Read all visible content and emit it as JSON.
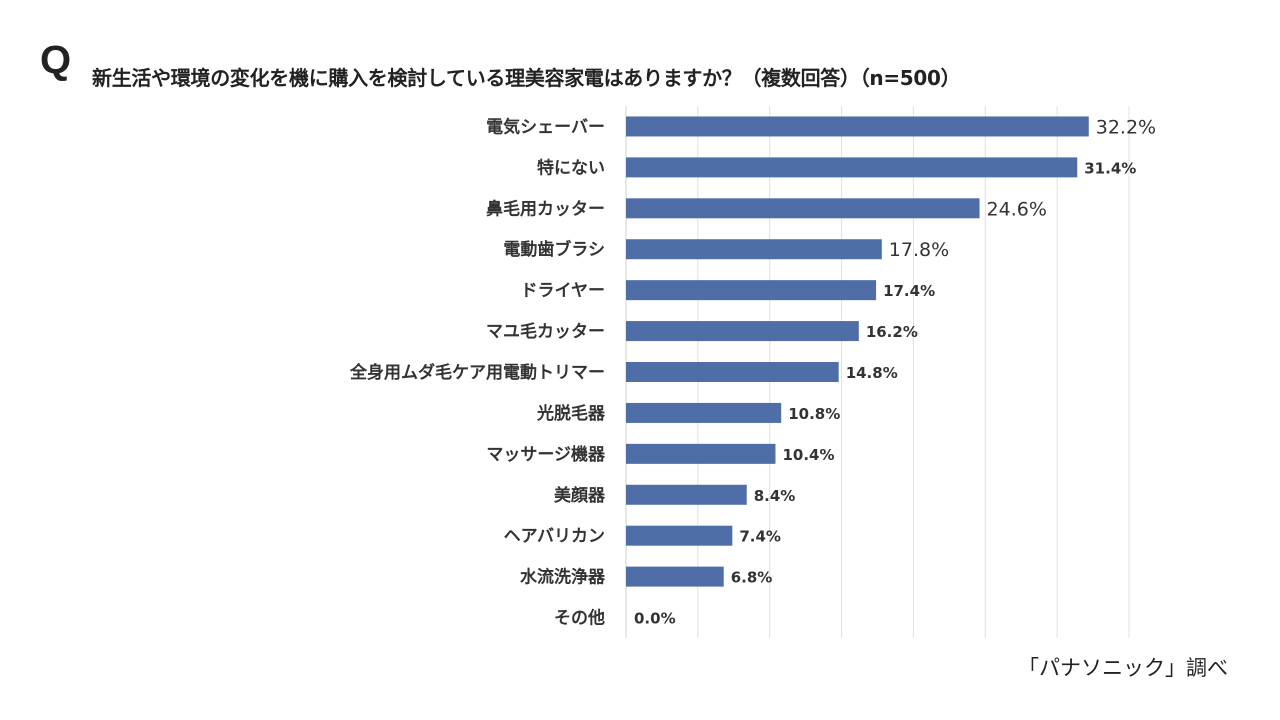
{
  "header": {
    "q_mark": "Q",
    "title": "新生活や環境の変化を機に購入を検討している理美容家電はありますか？（複数回答）（n=500）"
  },
  "source": "「パナソニック」調べ",
  "chart_data": {
    "type": "bar",
    "orientation": "horizontal",
    "title": "新生活や環境の変化を機に購入を検討している理美容家電はありますか？（複数回答）（n=500）",
    "categories": [
      "電気シェーバー",
      "特にない",
      "鼻毛用カッター",
      "電動歯ブラシ",
      "ドライヤー",
      "マユ毛カッター",
      "全身用ムダ毛ケア用電動トリマー",
      "光脱毛器",
      "マッサージ機器",
      "美顔器",
      "ヘアバリカン",
      "水流洗浄器",
      "その他"
    ],
    "values": [
      32.2,
      31.4,
      24.6,
      17.8,
      17.4,
      16.2,
      14.8,
      10.8,
      10.4,
      8.4,
      7.4,
      6.8,
      0.0
    ],
    "data_labels": [
      "32.2%",
      "31.4%",
      "24.6%",
      "17.8%",
      "17.4%",
      "16.2%",
      "14.8%",
      "10.8%",
      "10.4%",
      "8.4%",
      "7.4%",
      "6.8%",
      "0.0%"
    ],
    "unit": "%",
    "xlim": [
      0,
      35
    ],
    "grid": {
      "vertical": true,
      "step": 5
    },
    "legend": "none",
    "bar_color": "#4f6ea8",
    "grid_color": "#e0e0e0"
  }
}
